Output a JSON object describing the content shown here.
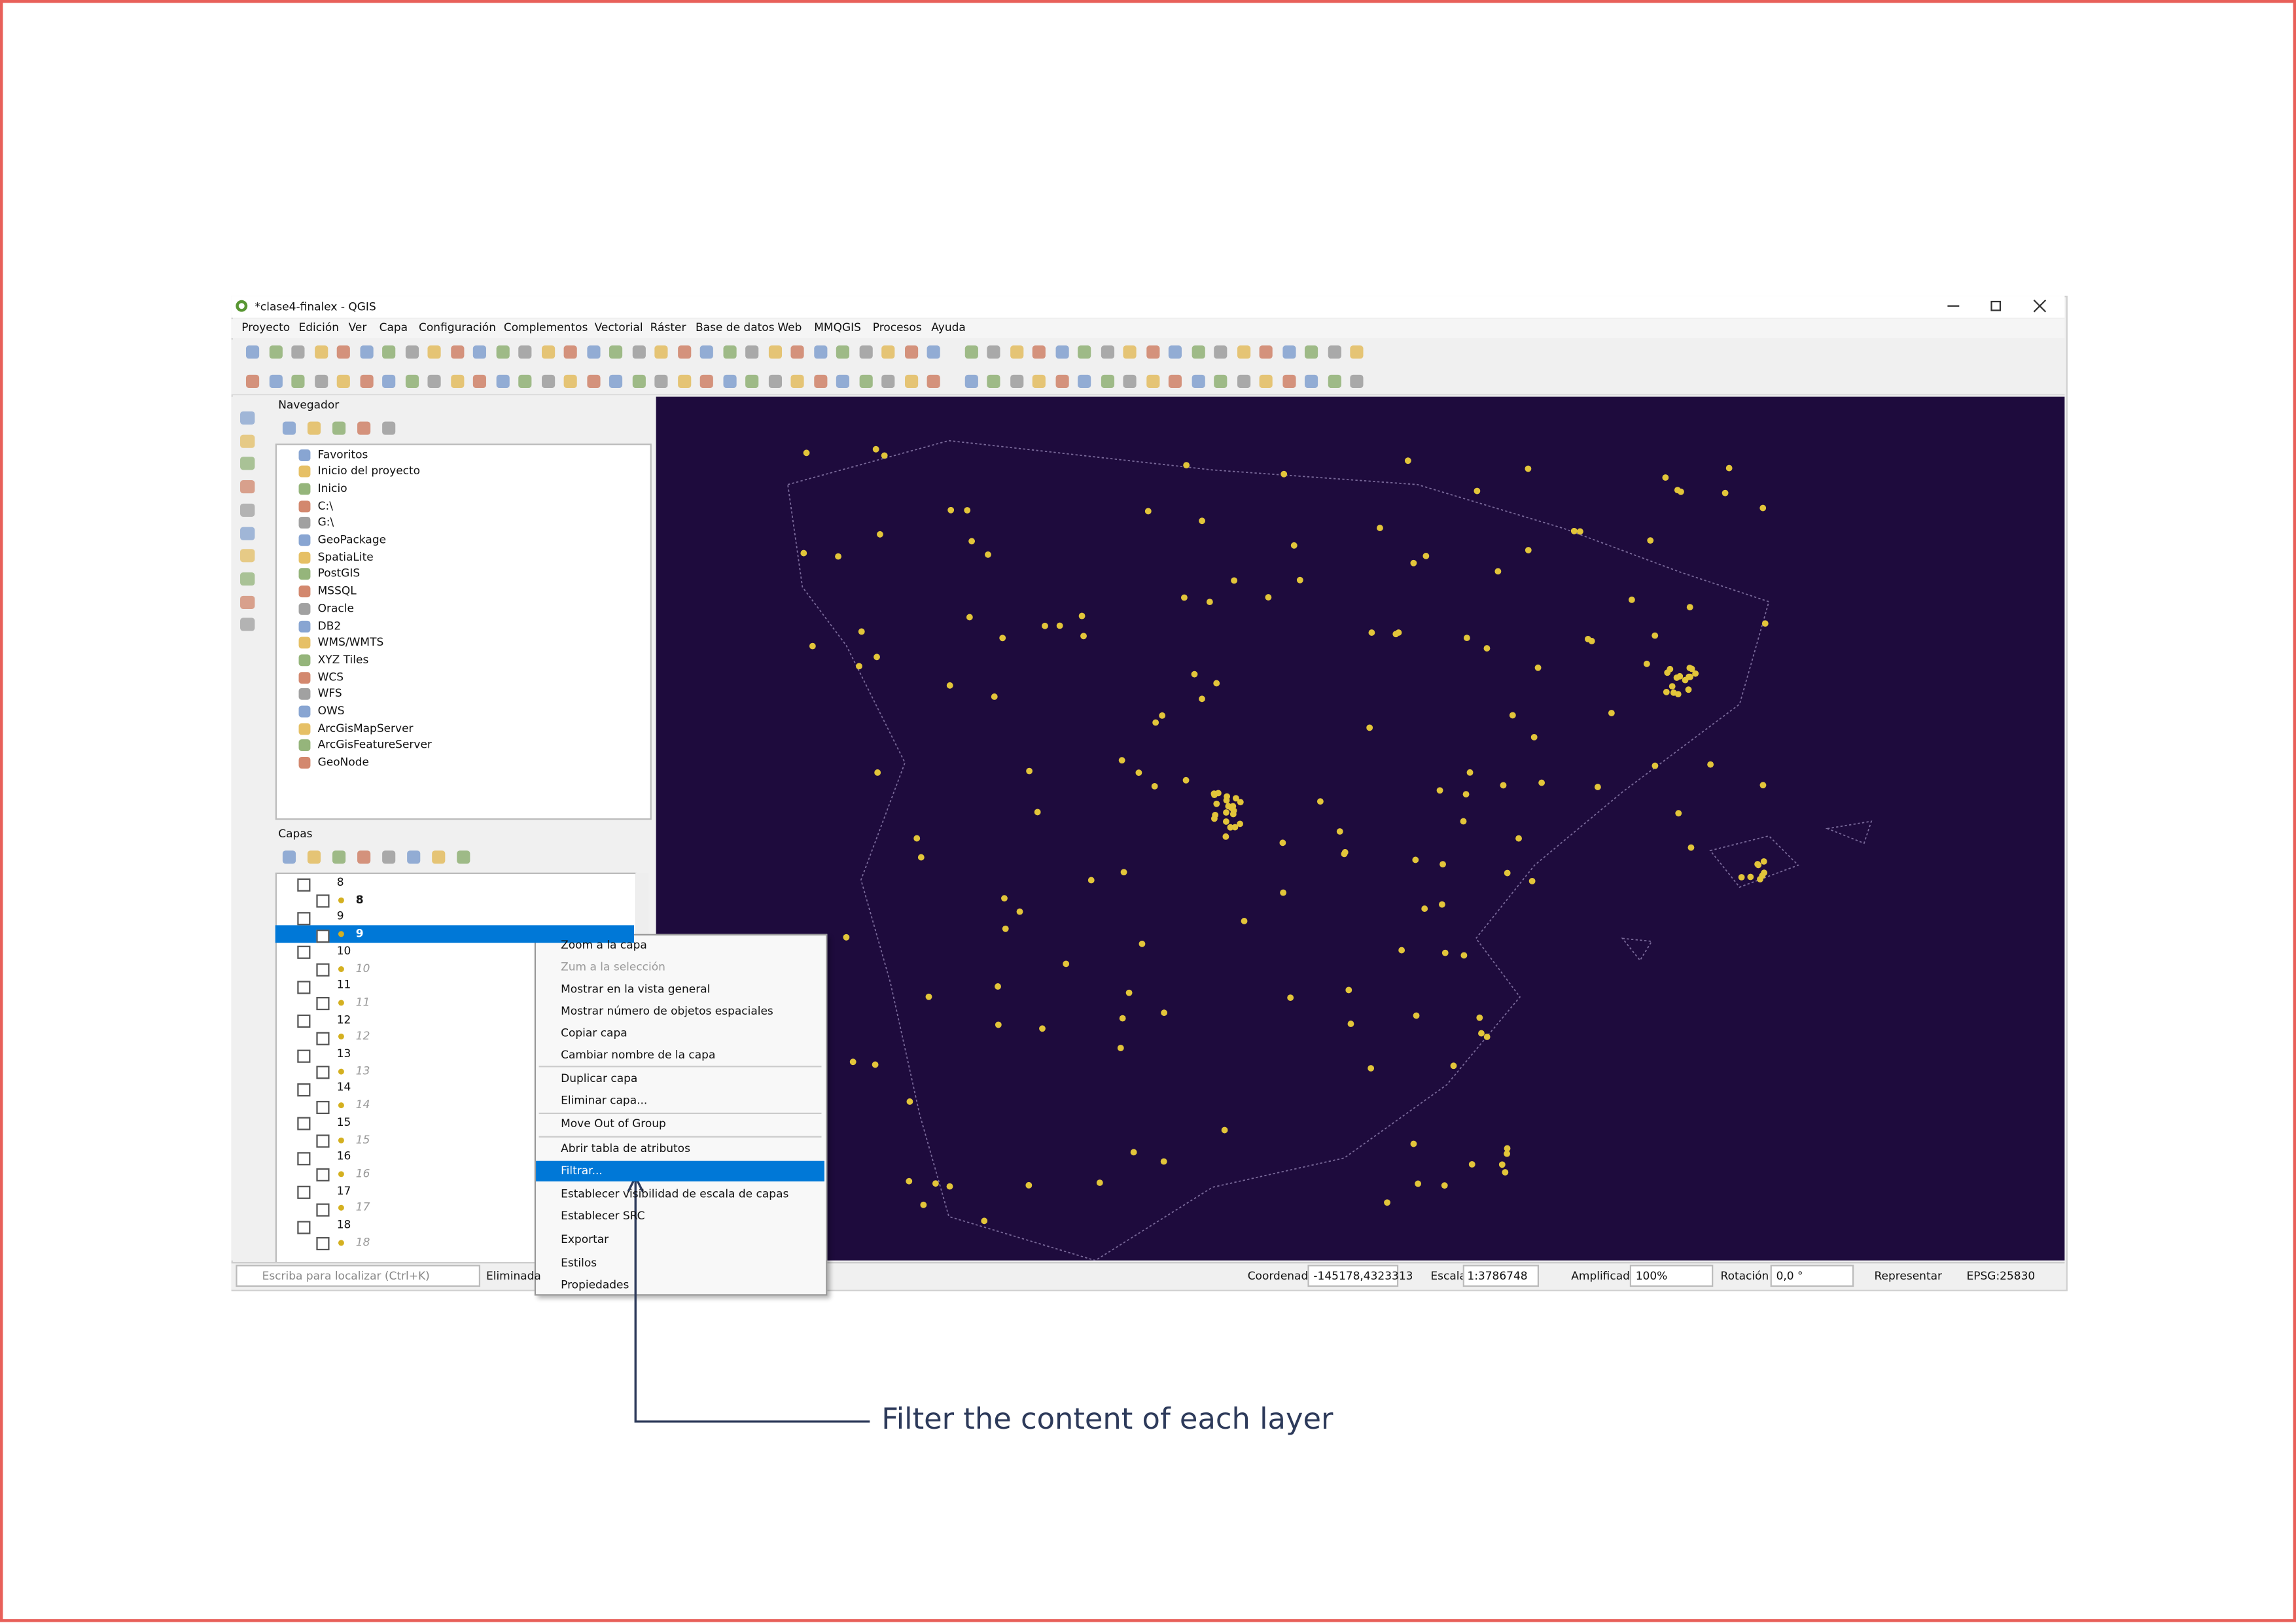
{
  "window": {
    "title": "*clase4-finalex - QGIS"
  },
  "menu": [
    "Proyecto",
    "Edición",
    "Ver",
    "Capa",
    "Configuración",
    "Complementos",
    "Vectorial",
    "Ráster",
    "Base de datos",
    "Web",
    "MMQGIS",
    "Procesos",
    "Ayuda"
  ],
  "navigator": {
    "title": "Navegador",
    "items": [
      "Favoritos",
      "Inicio del proyecto",
      "Inicio",
      "C:\\",
      "G:\\",
      "GeoPackage",
      "SpatiaLite",
      "PostGIS",
      "MSSQL",
      "Oracle",
      "DB2",
      "WMS/WMTS",
      "XYZ Tiles",
      "WCS",
      "WFS",
      "OWS",
      "ArcGisMapServer",
      "ArcGisFeatureServer",
      "GeoNode"
    ]
  },
  "layers": {
    "title": "Capas",
    "items": [
      {
        "group": "8",
        "layer": "8"
      },
      {
        "group": "9",
        "layer": "9"
      },
      {
        "group": "10",
        "layer": "10"
      },
      {
        "group": "11",
        "layer": "11"
      },
      {
        "group": "12",
        "layer": "12"
      },
      {
        "group": "13",
        "layer": "13"
      },
      {
        "group": "14",
        "layer": "14"
      },
      {
        "group": "15",
        "layer": "15"
      },
      {
        "group": "16",
        "layer": "16"
      },
      {
        "group": "17",
        "layer": "17"
      },
      {
        "group": "18",
        "layer": "18"
      }
    ]
  },
  "context_menu": [
    "Zoom a la capa",
    "Zum a la selección",
    "Mostrar en la vista general",
    "Mostrar número de objetos espaciales",
    "Copiar capa",
    "Cambiar nombre de la capa",
    "Duplicar capa",
    "Eliminar capa...",
    "Move Out of Group",
    "Abrir tabla de atributos",
    "Filtrar...",
    "Establecer visibilidad de escala de capas",
    "Establecer SRC",
    "Exportar",
    "Estilos",
    "Propiedades"
  ],
  "status_bar": {
    "search": "Escriba para localizar (Ctrl+K)",
    "message": "Eliminada",
    "coordinate_label": "Coordenada",
    "coordinate": "-145178,4323313",
    "scale_label": "Escala",
    "scale": "1:3786748",
    "magnifier_label": "Amplificador",
    "magnifier": "100%",
    "rotation_label": "Rotación",
    "rotation": "0,0 °",
    "render_label": "Representar",
    "crs": "EPSG:25830"
  },
  "annotation": "Filter the content of each layer"
}
